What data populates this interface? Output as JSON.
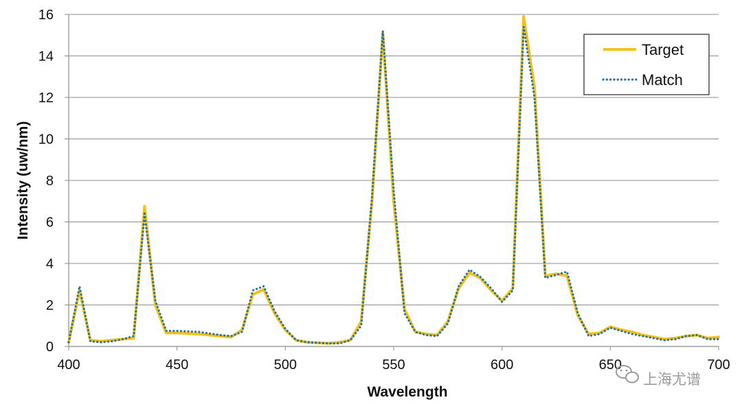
{
  "chart_data": {
    "type": "line",
    "title": "",
    "xlabel": "Wavelength",
    "ylabel": "Intensity (uw/nm)",
    "xlim": [
      400,
      700
    ],
    "ylim": [
      0,
      16
    ],
    "xticks": [
      400,
      450,
      500,
      550,
      600,
      650,
      700
    ],
    "yticks": [
      0,
      2,
      4,
      6,
      8,
      10,
      12,
      14,
      16
    ],
    "grid": "horizontal",
    "legend_position": "top-right",
    "series": [
      {
        "name": "Target",
        "color": "#F5C018",
        "style": "solid",
        "points": [
          [
            400,
            0.2
          ],
          [
            405,
            2.7
          ],
          [
            410,
            0.3
          ],
          [
            415,
            0.25
          ],
          [
            420,
            0.3
          ],
          [
            425,
            0.35
          ],
          [
            430,
            0.4
          ],
          [
            435,
            6.75
          ],
          [
            440,
            2.0
          ],
          [
            445,
            0.65
          ],
          [
            450,
            0.65
          ],
          [
            460,
            0.6
          ],
          [
            470,
            0.5
          ],
          [
            475,
            0.45
          ],
          [
            480,
            0.8
          ],
          [
            485,
            2.5
          ],
          [
            490,
            2.75
          ],
          [
            495,
            1.6
          ],
          [
            500,
            0.8
          ],
          [
            505,
            0.3
          ],
          [
            510,
            0.2
          ],
          [
            520,
            0.15
          ],
          [
            525,
            0.2
          ],
          [
            530,
            0.3
          ],
          [
            535,
            1.2
          ],
          [
            540,
            7.0
          ],
          [
            545,
            15.1
          ],
          [
            550,
            7.0
          ],
          [
            555,
            1.8
          ],
          [
            560,
            0.7
          ],
          [
            565,
            0.6
          ],
          [
            570,
            0.55
          ],
          [
            575,
            1.2
          ],
          [
            580,
            2.8
          ],
          [
            585,
            3.55
          ],
          [
            590,
            3.3
          ],
          [
            595,
            2.7
          ],
          [
            600,
            2.2
          ],
          [
            605,
            2.8
          ],
          [
            610,
            15.9
          ],
          [
            615,
            12.5
          ],
          [
            620,
            3.4
          ],
          [
            625,
            3.5
          ],
          [
            630,
            3.4
          ],
          [
            635,
            1.5
          ],
          [
            640,
            0.6
          ],
          [
            645,
            0.65
          ],
          [
            650,
            0.95
          ],
          [
            655,
            0.8
          ],
          [
            660,
            0.7
          ],
          [
            665,
            0.55
          ],
          [
            670,
            0.45
          ],
          [
            675,
            0.35
          ],
          [
            680,
            0.4
          ],
          [
            685,
            0.5
          ],
          [
            690,
            0.55
          ],
          [
            695,
            0.4
          ],
          [
            700,
            0.45
          ]
        ]
      },
      {
        "name": "Match",
        "color": "#2373A3",
        "style": "dotted",
        "points": [
          [
            400,
            0.2
          ],
          [
            405,
            2.9
          ],
          [
            410,
            0.25
          ],
          [
            415,
            0.2
          ],
          [
            420,
            0.25
          ],
          [
            425,
            0.35
          ],
          [
            430,
            0.5
          ],
          [
            435,
            6.4
          ],
          [
            440,
            2.2
          ],
          [
            445,
            0.75
          ],
          [
            450,
            0.75
          ],
          [
            460,
            0.7
          ],
          [
            470,
            0.55
          ],
          [
            475,
            0.5
          ],
          [
            480,
            0.7
          ],
          [
            485,
            2.7
          ],
          [
            490,
            2.9
          ],
          [
            495,
            1.7
          ],
          [
            500,
            0.85
          ],
          [
            505,
            0.3
          ],
          [
            510,
            0.2
          ],
          [
            520,
            0.15
          ],
          [
            525,
            0.15
          ],
          [
            530,
            0.3
          ],
          [
            535,
            1.0
          ],
          [
            540,
            7.2
          ],
          [
            545,
            15.2
          ],
          [
            550,
            7.5
          ],
          [
            555,
            1.6
          ],
          [
            560,
            0.7
          ],
          [
            565,
            0.55
          ],
          [
            570,
            0.5
          ],
          [
            575,
            1.1
          ],
          [
            580,
            2.9
          ],
          [
            585,
            3.7
          ],
          [
            590,
            3.35
          ],
          [
            595,
            2.8
          ],
          [
            600,
            2.15
          ],
          [
            605,
            2.7
          ],
          [
            610,
            15.4
          ],
          [
            615,
            12.0
          ],
          [
            620,
            3.3
          ],
          [
            625,
            3.45
          ],
          [
            630,
            3.6
          ],
          [
            635,
            1.6
          ],
          [
            640,
            0.5
          ],
          [
            645,
            0.6
          ],
          [
            650,
            0.9
          ],
          [
            655,
            0.75
          ],
          [
            660,
            0.6
          ],
          [
            665,
            0.5
          ],
          [
            670,
            0.4
          ],
          [
            675,
            0.3
          ],
          [
            680,
            0.35
          ],
          [
            685,
            0.5
          ],
          [
            690,
            0.55
          ],
          [
            695,
            0.35
          ],
          [
            700,
            0.35
          ]
        ]
      }
    ]
  },
  "watermark": {
    "text": "上海尤谱",
    "icon": "wechat-icon"
  }
}
